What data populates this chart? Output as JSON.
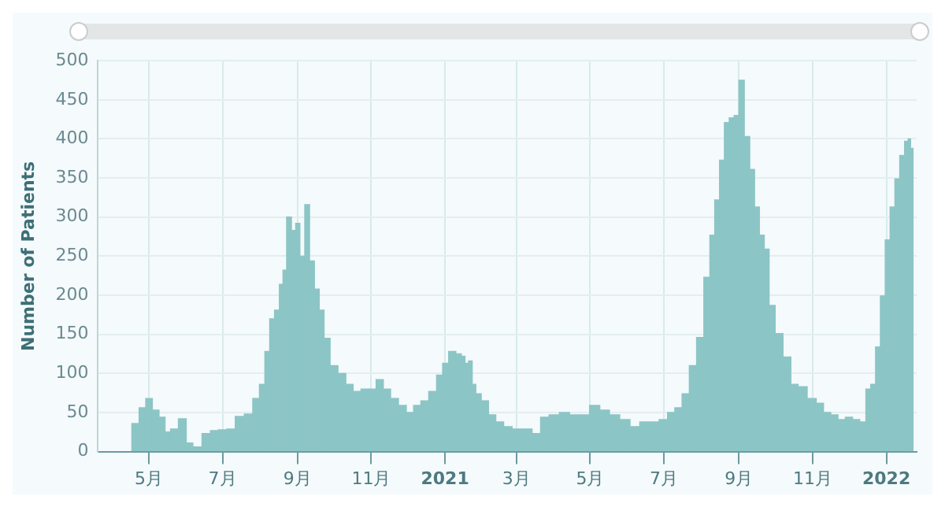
{
  "chart_data": {
    "type": "bar",
    "ylabel": "Number of Patients",
    "x": [
      "2020-04-20",
      "2020-04-26",
      "2020-05-01",
      "2020-05-07",
      "2020-05-12",
      "2020-05-17",
      "2020-05-21",
      "2020-05-30",
      "2020-06-03",
      "2020-06-10",
      "2020-06-18",
      "2020-06-24",
      "2020-07-01",
      "2020-07-08",
      "2020-07-15",
      "2020-07-23",
      "2020-07-29",
      "2020-08-03",
      "2020-08-07",
      "2020-08-11",
      "2020-08-15",
      "2020-08-19",
      "2020-08-21",
      "2020-08-25",
      "2020-08-29",
      "2020-09-01",
      "2020-09-05",
      "2020-09-09",
      "2020-09-13",
      "2020-09-17",
      "2020-09-21",
      "2020-09-25",
      "2020-10-01",
      "2020-10-08",
      "2020-10-14",
      "2020-10-20",
      "2020-10-27",
      "2020-11-02",
      "2020-11-08",
      "2020-11-14",
      "2020-11-20",
      "2020-11-27",
      "2020-12-03",
      "2020-12-09",
      "2020-12-15",
      "2020-12-22",
      "2020-12-28",
      "2021-01-01",
      "2021-01-07",
      "2021-01-13",
      "2021-01-16",
      "2021-01-19",
      "2021-01-22",
      "2021-01-25",
      "2021-01-28",
      "2021-02-03",
      "2021-02-09",
      "2021-02-15",
      "2021-02-22",
      "2021-03-01",
      "2021-03-10",
      "2021-03-18",
      "2021-03-24",
      "2021-04-01",
      "2021-04-10",
      "2021-04-18",
      "2021-04-26",
      "2021-05-05",
      "2021-05-13",
      "2021-05-21",
      "2021-05-30",
      "2021-06-07",
      "2021-06-15",
      "2021-06-23",
      "2021-07-01",
      "2021-07-07",
      "2021-07-13",
      "2021-07-19",
      "2021-07-25",
      "2021-07-31",
      "2021-08-06",
      "2021-08-10",
      "2021-08-14",
      "2021-08-18",
      "2021-08-22",
      "2021-08-26",
      "2021-08-30",
      "2021-09-03",
      "2021-09-08",
      "2021-09-12",
      "2021-09-16",
      "2021-09-20",
      "2021-09-24",
      "2021-09-28",
      "2021-10-04",
      "2021-10-11",
      "2021-10-17",
      "2021-10-23",
      "2021-11-01",
      "2021-11-07",
      "2021-11-13",
      "2021-11-19",
      "2021-11-25",
      "2021-12-01",
      "2021-12-07",
      "2021-12-13",
      "2021-12-17",
      "2021-12-21",
      "2021-12-25",
      "2021-12-29",
      "2022-01-02",
      "2022-01-06",
      "2022-01-10",
      "2022-01-14",
      "2022-01-18",
      "2022-01-20",
      "2022-01-22"
    ],
    "values": [
      36,
      56,
      68,
      53,
      44,
      25,
      29,
      42,
      11,
      6,
      23,
      27,
      28,
      29,
      45,
      48,
      68,
      86,
      128,
      170,
      181,
      214,
      232,
      300,
      283,
      292,
      250,
      316,
      244,
      208,
      181,
      145,
      110,
      100,
      86,
      77,
      80,
      80,
      92,
      80,
      68,
      59,
      50,
      59,
      65,
      77,
      98,
      113,
      128,
      125,
      122,
      113,
      116,
      86,
      74,
      65,
      47,
      38,
      32,
      29,
      29,
      23,
      44,
      47,
      50,
      47,
      47,
      59,
      53,
      47,
      41,
      32,
      38,
      38,
      41,
      50,
      56,
      74,
      110,
      146,
      223,
      277,
      322,
      373,
      421,
      427,
      430,
      475,
      403,
      361,
      313,
      277,
      259,
      187,
      151,
      121,
      86,
      83,
      68,
      62,
      50,
      47,
      41,
      44,
      41,
      38,
      80,
      86,
      134,
      199,
      271,
      313,
      349,
      379,
      397,
      400,
      388
    ],
    "color": "#8cc5c5",
    "xlim": [
      "2020-03-20",
      "2022-01-26"
    ],
    "xticks": [
      {
        "value": "2020-05-01",
        "label": "5月"
      },
      {
        "value": "2020-07-01",
        "label": "7月"
      },
      {
        "value": "2020-09-01",
        "label": "9月"
      },
      {
        "value": "2020-11-01",
        "label": "11月"
      },
      {
        "value": "2021-01-01",
        "label": "2021"
      },
      {
        "value": "2021-03-01",
        "label": "3月"
      },
      {
        "value": "2021-05-01",
        "label": "5月"
      },
      {
        "value": "2021-07-01",
        "label": "7月"
      },
      {
        "value": "2021-09-01",
        "label": "9月"
      },
      {
        "value": "2021-11-01",
        "label": "11月"
      },
      {
        "value": "2022-01-01",
        "label": "2022"
      }
    ],
    "ylim": [
      0,
      500
    ],
    "yticks": [
      0,
      50,
      100,
      150,
      200,
      250,
      300,
      350,
      400,
      450,
      500
    ],
    "grid": true,
    "legend": false
  }
}
